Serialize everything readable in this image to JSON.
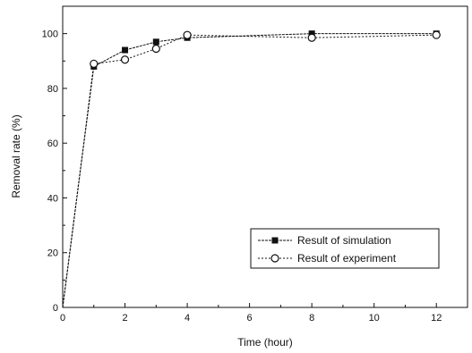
{
  "chart_data": {
    "type": "line",
    "xlabel": "Time (hour)",
    "ylabel": "Removal rate (%)",
    "xlim": [
      0,
      13
    ],
    "ylim": [
      0,
      110
    ],
    "xticks": [
      0,
      2,
      4,
      6,
      8,
      10,
      12
    ],
    "yticks": [
      0,
      20,
      40,
      60,
      80,
      100
    ],
    "grid": false,
    "legend_position": "bottom-right",
    "series": [
      {
        "name": "Result of simulation",
        "marker": "filled-square",
        "color": "#111111",
        "points": [
          [
            0,
            0
          ],
          [
            1,
            88
          ],
          [
            2,
            94
          ],
          [
            3,
            97
          ],
          [
            4,
            98.5
          ],
          [
            8,
            100
          ],
          [
            12,
            100
          ]
        ]
      },
      {
        "name": "Result of experiment",
        "marker": "open-circle",
        "color": "#111111",
        "points": [
          [
            0,
            0
          ],
          [
            1,
            89
          ],
          [
            2,
            90.5
          ],
          [
            3,
            94.5
          ],
          [
            4,
            99.5
          ],
          [
            8,
            98.5
          ],
          [
            12,
            99.5
          ]
        ]
      }
    ]
  }
}
